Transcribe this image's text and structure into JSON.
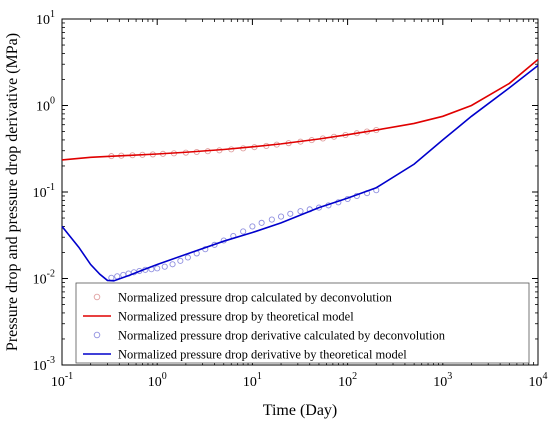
{
  "chart_data": {
    "type": "scatter",
    "title": "",
    "xlabel": "Time (Day)",
    "ylabel": "Pressure drop and pressure drop derivative (MPa)",
    "xscale": "log",
    "yscale": "log",
    "xlim": [
      0.1,
      10000
    ],
    "ylim": [
      0.001,
      10
    ],
    "x_ticks": [
      {
        "value": 0.1,
        "base": "10",
        "exp": "-1"
      },
      {
        "value": 1,
        "base": "10",
        "exp": "0"
      },
      {
        "value": 10,
        "base": "10",
        "exp": "1"
      },
      {
        "value": 100,
        "base": "10",
        "exp": "2"
      },
      {
        "value": 1000,
        "base": "10",
        "exp": "3"
      },
      {
        "value": 10000,
        "base": "10",
        "exp": "4"
      }
    ],
    "y_ticks": [
      {
        "value": 0.001,
        "base": "10",
        "exp": "-3"
      },
      {
        "value": 0.01,
        "base": "10",
        "exp": "-2"
      },
      {
        "value": 0.1,
        "base": "10",
        "exp": "-1"
      },
      {
        "value": 1,
        "base": "10",
        "exp": "0"
      },
      {
        "value": 10,
        "base": "10",
        "exp": "1"
      }
    ],
    "grid": false,
    "legend_position": "bottom-left",
    "series": [
      {
        "name": "Normalized pressure drop calculated by deconvolution",
        "kind": "markers",
        "color": "#e0a0a0",
        "x": [
          0.33,
          0.42,
          0.55,
          0.7,
          0.9,
          1.15,
          1.5,
          2,
          2.6,
          3.4,
          4.5,
          6,
          8,
          10.5,
          14,
          18,
          24,
          32,
          42,
          55,
          72,
          95,
          125,
          160,
          200
        ],
        "y": [
          0.26,
          0.263,
          0.266,
          0.269,
          0.272,
          0.276,
          0.28,
          0.285,
          0.29,
          0.296,
          0.303,
          0.311,
          0.32,
          0.33,
          0.341,
          0.353,
          0.367,
          0.382,
          0.398,
          0.416,
          0.435,
          0.456,
          0.478,
          0.5,
          0.52
        ]
      },
      {
        "name": "Normalized pressure drop by theoretical model",
        "kind": "line",
        "color": "#e00000",
        "x": [
          0.1,
          0.2,
          0.3,
          0.5,
          1,
          2,
          5,
          10,
          20,
          50,
          100,
          200,
          500,
          1000,
          2000,
          5000,
          10000
        ],
        "y": [
          0.235,
          0.252,
          0.258,
          0.265,
          0.275,
          0.288,
          0.31,
          0.333,
          0.36,
          0.41,
          0.46,
          0.52,
          0.62,
          0.75,
          1.0,
          1.8,
          3.4
        ]
      },
      {
        "name": "Normalized pressure drop derivative calculated by deconvolution",
        "kind": "markers",
        "color": "#9090e0",
        "x": [
          0.33,
          0.38,
          0.44,
          0.5,
          0.57,
          0.65,
          0.75,
          0.87,
          1.0,
          1.2,
          1.45,
          1.75,
          2.1,
          2.6,
          3.2,
          4.0,
          5.0,
          6.3,
          8.0,
          10,
          12.5,
          16,
          20,
          25,
          32,
          40,
          50,
          63,
          80,
          100,
          125,
          160,
          200
        ],
        "y": [
          0.0102,
          0.0106,
          0.011,
          0.0114,
          0.0118,
          0.0122,
          0.0126,
          0.0128,
          0.0131,
          0.0137,
          0.0146,
          0.016,
          0.0175,
          0.0195,
          0.0218,
          0.0245,
          0.0275,
          0.031,
          0.035,
          0.04,
          0.044,
          0.048,
          0.052,
          0.056,
          0.06,
          0.063,
          0.066,
          0.07,
          0.076,
          0.083,
          0.09,
          0.097,
          0.105
        ]
      },
      {
        "name": "Normalized pressure drop  derivative  by theoretical  model",
        "kind": "line",
        "color": "#0000cc",
        "x": [
          0.1,
          0.15,
          0.2,
          0.25,
          0.3,
          0.35,
          0.4,
          0.5,
          0.7,
          1,
          2,
          5,
          10,
          20,
          50,
          100,
          200,
          500,
          1000,
          2000,
          5000,
          10000
        ],
        "y": [
          0.04,
          0.023,
          0.0145,
          0.0112,
          0.0095,
          0.0094,
          0.0099,
          0.0108,
          0.0125,
          0.0145,
          0.019,
          0.027,
          0.034,
          0.044,
          0.066,
          0.085,
          0.112,
          0.21,
          0.4,
          0.75,
          1.6,
          2.9
        ]
      }
    ]
  }
}
